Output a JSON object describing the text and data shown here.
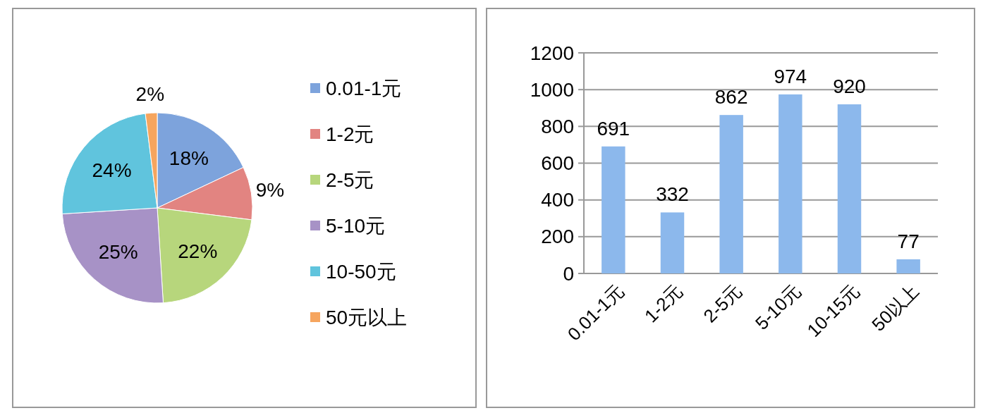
{
  "chart_data": [
    {
      "type": "pie",
      "categories": [
        "0.01-1元",
        "1-2元",
        "2-5元",
        "5-10元",
        "10-50元",
        "50元以上"
      ],
      "values": [
        18,
        9,
        22,
        25,
        24,
        2
      ],
      "colors": [
        "#7da3dc",
        "#e28481",
        "#b7d67c",
        "#a792c6",
        "#60c4dd",
        "#f6a55e"
      ],
      "value_labels": [
        "18%",
        "9%",
        "22%",
        "25%",
        "24%",
        "2%"
      ],
      "legend": "right"
    },
    {
      "type": "bar",
      "categories": [
        "0.01-1元",
        "1-2元",
        "2-5元",
        "5-10元",
        "10-15元",
        "50以上"
      ],
      "values": [
        691,
        332,
        862,
        974,
        920,
        77
      ],
      "color": "#8cb8ec",
      "ylim": [
        0,
        1200
      ],
      "yticks": [
        0,
        200,
        400,
        600,
        800,
        1000,
        1200
      ],
      "grid": "y",
      "data_labels": true
    }
  ]
}
